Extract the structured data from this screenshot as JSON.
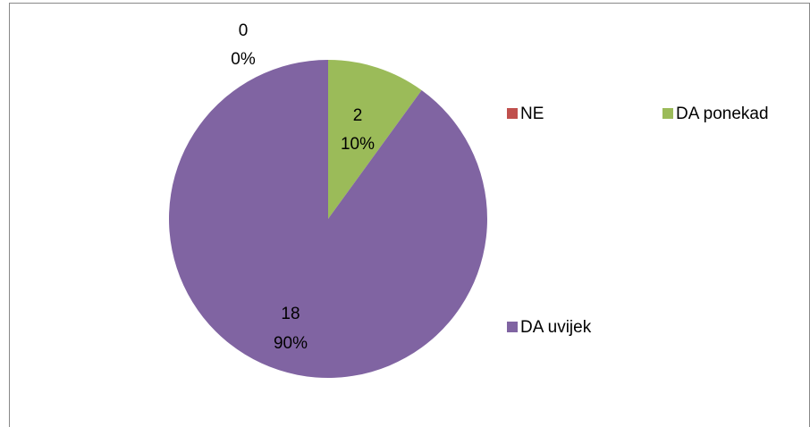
{
  "chart_data": {
    "type": "pie",
    "categories": [
      "NE",
      "DA ponekad",
      "DA uvijek"
    ],
    "values": [
      0,
      2,
      18
    ],
    "percentages": [
      0,
      10,
      90
    ],
    "percentage_labels": [
      "0%",
      "10%",
      "90%"
    ],
    "colors": [
      "#c0504d",
      "#9bbb59",
      "#8064a2"
    ]
  }
}
